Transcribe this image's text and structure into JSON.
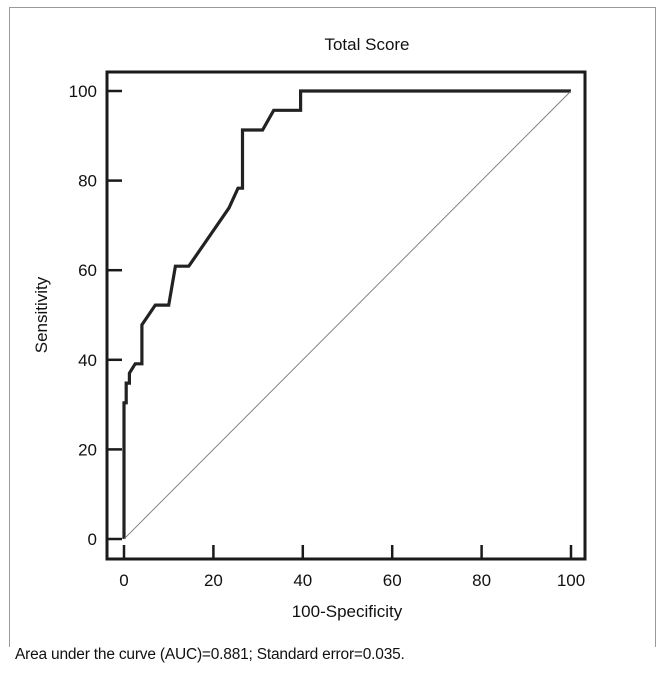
{
  "caption": "Area under the curve (AUC)=0.881; Standard error=0.035.",
  "chart_data": {
    "type": "line",
    "title": "Total Score",
    "xlabel": "100-Specificity",
    "ylabel": "Sensitivity",
    "xlim": [
      0,
      100
    ],
    "ylim": [
      0,
      100
    ],
    "x_ticks": [
      0,
      20,
      40,
      60,
      80,
      100
    ],
    "y_ticks": [
      0,
      20,
      40,
      60,
      80,
      100
    ],
    "grid": false,
    "series": [
      {
        "style": "roc-curve",
        "color": "#222222",
        "x": [
          0,
          0,
          0.5,
          0.5,
          1.2,
          1.2,
          2.5,
          4,
          4,
          7,
          10,
          11.5,
          14.5,
          23.5,
          25.5,
          26.5,
          26.5,
          31,
          33.5,
          39.5,
          39.5,
          100
        ],
        "y": [
          0,
          30.4,
          30.4,
          34.8,
          34.8,
          37,
          39.1,
          39.1,
          47.8,
          52.2,
          52.2,
          60.9,
          60.9,
          73.9,
          78.3,
          78.3,
          91.3,
          91.3,
          95.7,
          95.7,
          100,
          100
        ]
      },
      {
        "style": "reference-diagonal",
        "color": "#777777",
        "x": [
          0,
          100
        ],
        "y": [
          0,
          100
        ]
      }
    ]
  }
}
